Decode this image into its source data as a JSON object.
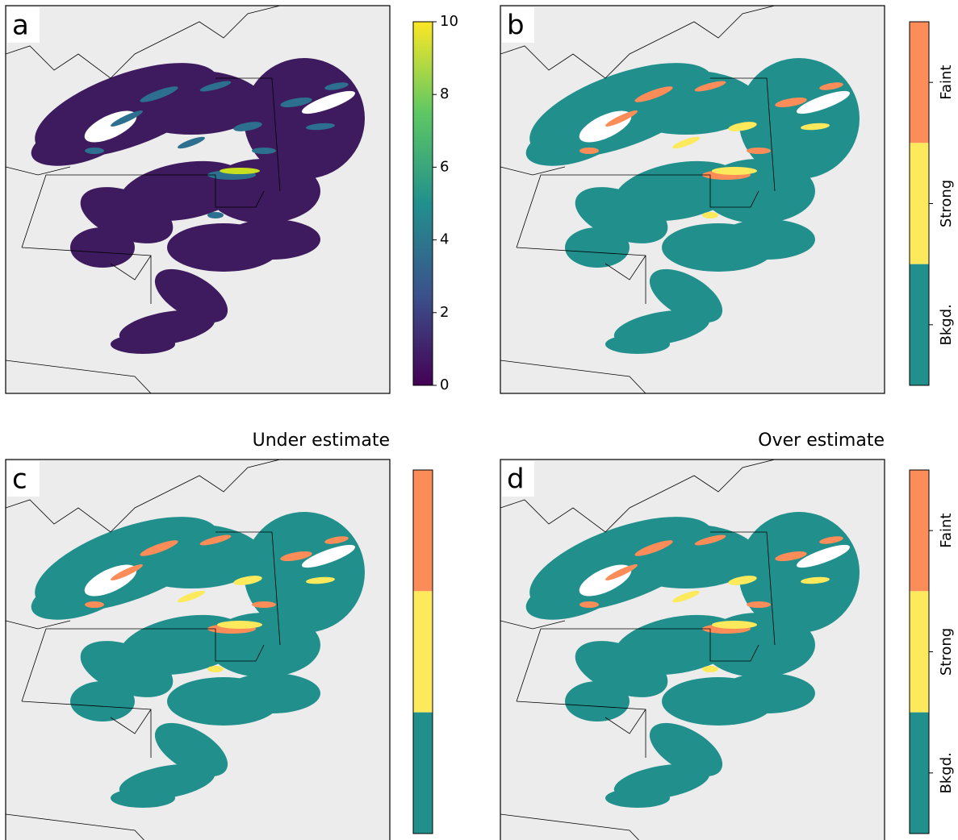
{
  "panels": [
    {
      "label": "a",
      "colorbar": {
        "lim": [
          0,
          10
        ],
        "ticks": [
          0,
          2,
          4,
          6,
          8,
          10
        ]
      }
    },
    {
      "label": "b",
      "colorbar": {
        "classes": [
          "Faint",
          "Strong",
          "Bkgd."
        ],
        "colors": [
          "#fc8d59",
          "#fde95c",
          "#21908d"
        ]
      }
    },
    {
      "label": "c",
      "title": "Under estimate",
      "colorbar": {
        "colors": [
          "#fc8d59",
          "#fde95c",
          "#21908d"
        ]
      }
    },
    {
      "label": "d",
      "title": "Over estimate",
      "colorbar": {
        "classes": [
          "Faint",
          "Strong",
          "Bkgd."
        ],
        "colors": [
          "#fc8d59",
          "#fde95c",
          "#21908d"
        ]
      }
    }
  ]
}
